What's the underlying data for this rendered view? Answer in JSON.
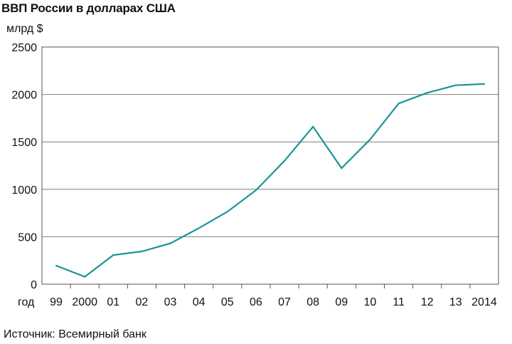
{
  "chart_data": {
    "type": "line",
    "title": "ВВП России в долларах США",
    "ylabel": "млрд $",
    "xlabel": "год",
    "source": "Источник: Всемирный банк",
    "categories": [
      "99",
      "2000",
      "01",
      "02",
      "03",
      "04",
      "05",
      "06",
      "07",
      "08",
      "09",
      "10",
      "11",
      "12",
      "13",
      "2014"
    ],
    "y_ticks": [
      0,
      500,
      1000,
      1500,
      2000,
      2500
    ],
    "ylim": [
      0,
      2500
    ],
    "grid": true,
    "series": [
      {
        "values": [
          195,
          78,
          306,
          345,
          430,
          591,
          764,
          990,
          1300,
          1660,
          1223,
          1525,
          1905,
          2017,
          2097,
          2110
        ],
        "color": "#1a9496"
      }
    ],
    "axis_color": "#555555",
    "grid_color": "#7f7f7f"
  }
}
